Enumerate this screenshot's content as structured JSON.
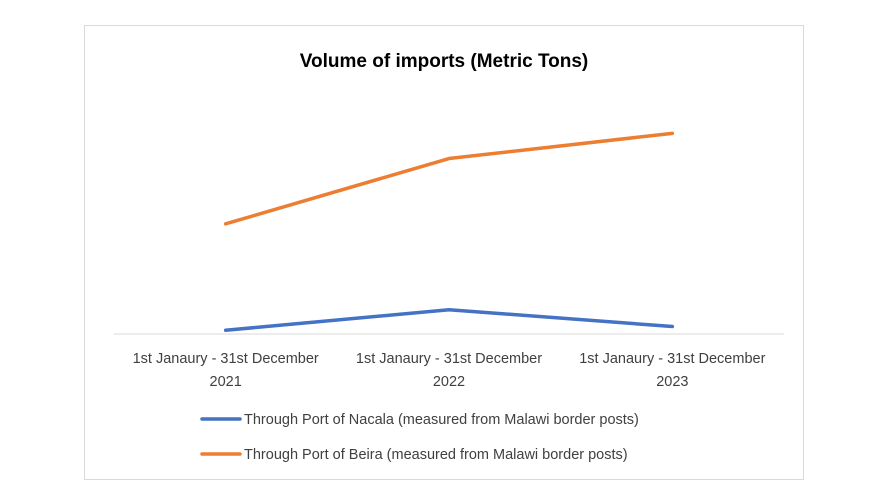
{
  "chart_data": {
    "type": "line",
    "title": "Volume of imports (Metric Tons)",
    "categories": [
      [
        "1st Janaury - 31st December",
        "2021"
      ],
      [
        "1st Janaury - 31st December",
        "2022"
      ],
      [
        "1st Janaury - 31st December",
        "2023"
      ]
    ],
    "series": [
      {
        "name": "Through Port of Nacala (measured from Malawi border posts)",
        "color": "#4472c4",
        "values": [
          4,
          26,
          8
        ]
      },
      {
        "name": "Through Port of Beira (measured from Malawi border posts)",
        "color": "#ed7d31",
        "values": [
          118,
          188,
          215
        ]
      }
    ],
    "ylim": [
      0,
      240
    ],
    "grid": false,
    "legend_position": "bottom"
  }
}
